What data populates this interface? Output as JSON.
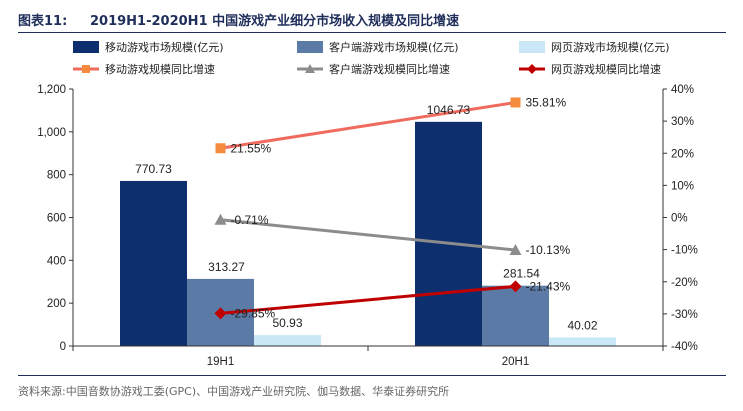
{
  "header": {
    "label": "图表11:",
    "title": "2019H1-2020H1 中国游戏产业细分市场收入规模及同比增速"
  },
  "source": "资料来源:中国音数协游戏工委(GPC)、中国游戏产业研究院、伽马数据、华泰证券研究所",
  "chart_data": {
    "type": "bar",
    "categories": [
      "19H1",
      "20H1"
    ],
    "left_axis": {
      "min": 0,
      "max": 1200,
      "step": 200,
      "ticks": [
        "0",
        "200",
        "400",
        "600",
        "800",
        "1,000",
        "1,200"
      ]
    },
    "right_axis": {
      "min": -40,
      "max": 40,
      "step": 10,
      "ticks": [
        "-40%",
        "-30%",
        "-20%",
        "-10%",
        "0%",
        "10%",
        "20%",
        "30%",
        "40%"
      ]
    },
    "bar_series": [
      {
        "name": "移动游戏市场规模(亿元)",
        "values": [
          770.73,
          1046.73
        ],
        "labels": [
          "770.73",
          "1046.73"
        ],
        "color": "#0e2f6e"
      },
      {
        "name": "客户端游戏市场规模(亿元)",
        "values": [
          313.27,
          281.54
        ],
        "labels": [
          "313.27",
          "281.54"
        ],
        "color": "#5b7aa6"
      },
      {
        "name": "网页游戏市场规模(亿元)",
        "values": [
          50.93,
          40.02
        ],
        "labels": [
          "50.93",
          "40.02"
        ],
        "color": "#c9e7f7"
      }
    ],
    "line_series": [
      {
        "name": "移动游戏规模同比增速",
        "values": [
          21.55,
          35.81
        ],
        "labels": [
          "21.55%",
          "35.81%"
        ],
        "color": "#f06b5e",
        "marker": "square",
        "marker_color": "#f58b3c"
      },
      {
        "name": "客户端游戏规模同比增速",
        "values": [
          -0.71,
          -10.13
        ],
        "labels": [
          "-0.71%",
          "-10.13%"
        ],
        "color": "#8c8c8c",
        "marker": "triangle",
        "marker_color": "#8c8c8c"
      },
      {
        "name": "网页游戏规模同比增速",
        "values": [
          -29.85,
          -21.43
        ],
        "labels": [
          "-29.85%",
          "-21.43%"
        ],
        "color": "#c00000",
        "marker": "diamond",
        "marker_color": "#c00000"
      }
    ],
    "legend_position": "top",
    "grid": false
  }
}
